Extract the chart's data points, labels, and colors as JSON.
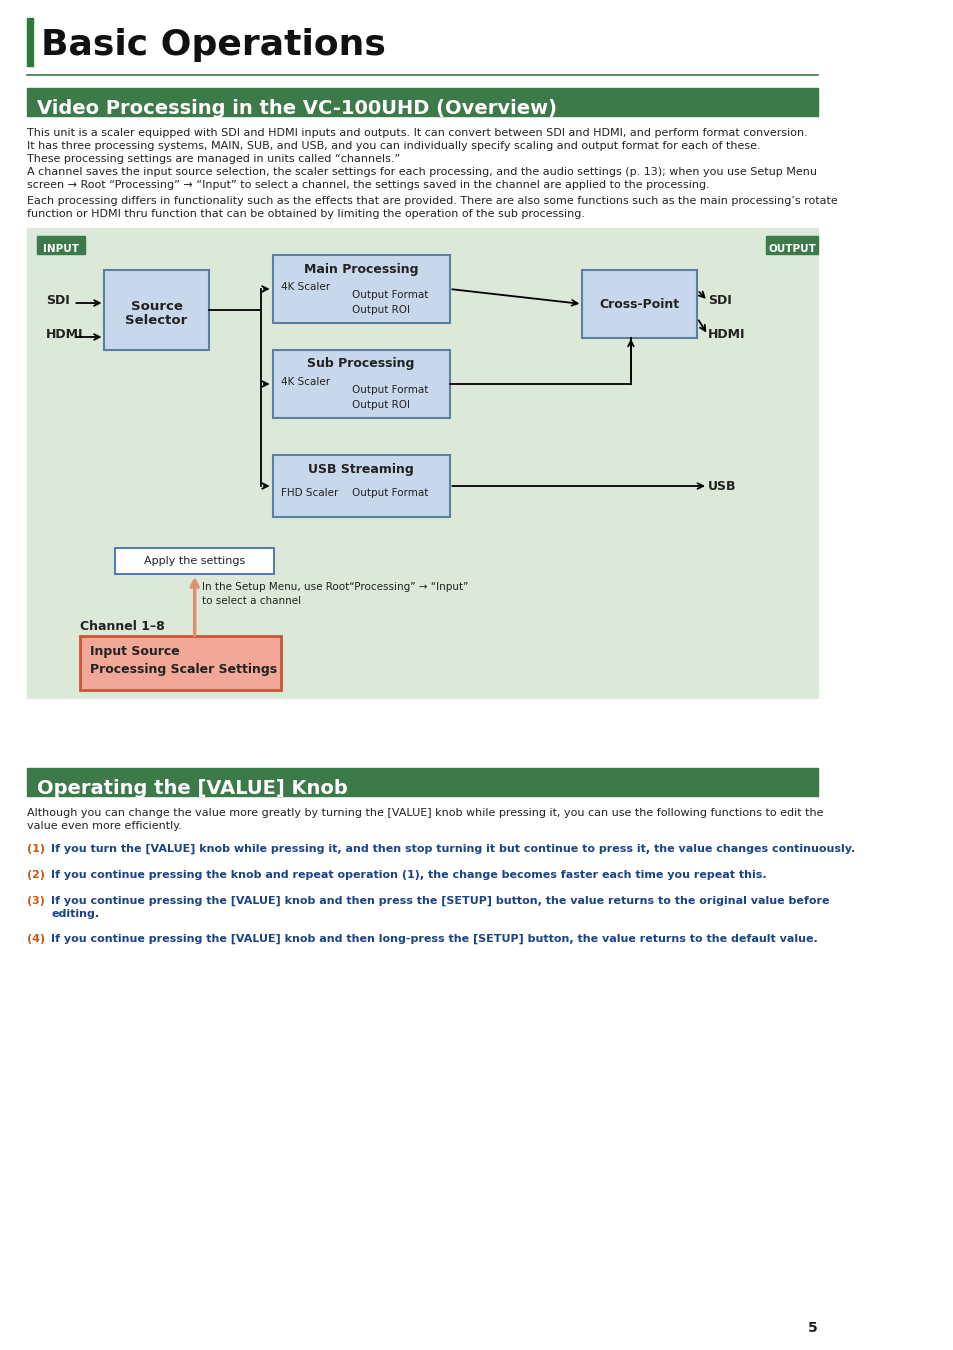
{
  "page_bg": "#ffffff",
  "title_bar_color": "#3d7a4a",
  "title_text": "Basic Operations",
  "title_fontsize": 26,
  "section1_title": "Video Processing in the VC-100UHD (Overview)",
  "section1_title_fontsize": 14,
  "section2_title": "Operating the [VALUE] Knob",
  "section2_title_fontsize": 14,
  "body_fontsize": 8.0,
  "body_color": "#222222",
  "diagram_bg": "#dce8d8",
  "box_blue_fill": "#c8d8ec",
  "box_blue_border": "#5a7fa0",
  "box_red_fill": "#f2a898",
  "box_red_border": "#cc5533",
  "box_white_fill": "#ffffff",
  "box_white_border": "#3366aa",
  "text_orange": "#cc5511",
  "text_blue": "#1a4488",
  "label_green_bg": "#3d7a4a",
  "accent_green": "#2d7a3a",
  "line_color": "#3d7a4a",
  "para1": "This unit is a scaler equipped with SDI and HDMI inputs and outputs. It can convert between SDI and HDMI, and perform format conversion.",
  "para2": "It has three processing systems, MAIN, SUB, and USB, and you can individually specify scaling and output format for each of these.",
  "para3": "These processing settings are managed in units called “channels.”",
  "para4a": "A channel saves the input source selection, the scaler settings for each processing, and the audio settings (p. 13); when you use Setup Menu",
  "para4b": "screen → Root “Processing” → “Input” to select a channel, the settings saved in the channel are applied to the processing.",
  "para5a": "Each processing differs in functionality such as the effects that are provided. There are also some functions such as the main processing’s rotate",
  "para5b": "function or HDMI thru function that can be obtained by limiting the operation of the sub processing.",
  "knob_para1": "Although you can change the value more greatly by turning the [VALUE] knob while pressing it, you can use the following functions to edit the",
  "knob_para2": "value even more efficiently.",
  "item1_num": "(1)",
  "item1_text": "If you turn the [VALUE] knob while pressing it, and then stop turning it but continue to press it, the value changes continuously.",
  "item2_num": "(2)",
  "item2_text": "If you continue pressing the knob and repeat operation (1), the change becomes faster each time you repeat this.",
  "item3_num": "(3)",
  "item3_text_a": "If you continue pressing the [VALUE] knob and then press the [SETUP] button, the value returns to the original value before",
  "item3_text_b": "editing.",
  "item4_num": "(4)",
  "item4_text": "If you continue pressing the [VALUE] knob and then long-press the [SETUP] button, the value returns to the default value.",
  "page_number": "5"
}
